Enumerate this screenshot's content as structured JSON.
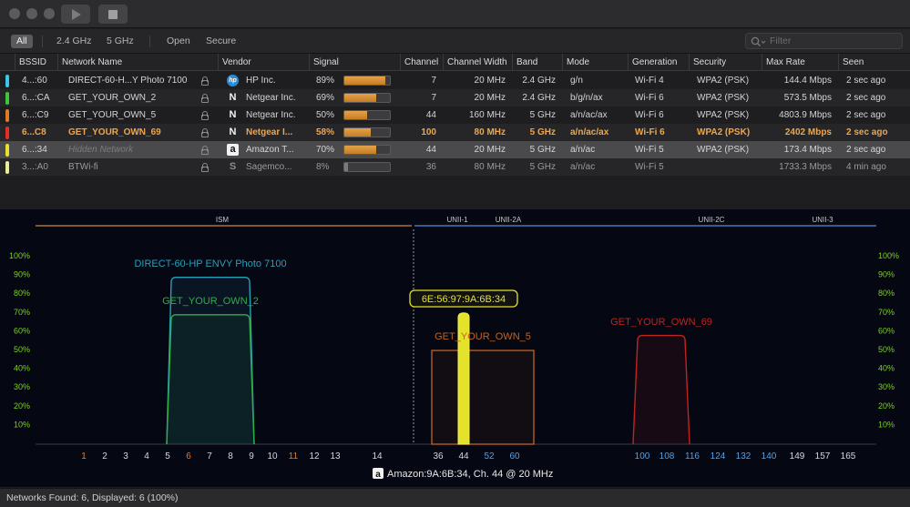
{
  "toolbar": {
    "play_icon": "play-icon",
    "stop_icon": "stop-icon"
  },
  "filters": {
    "all": "All",
    "band24": "2.4 GHz",
    "band5": "5 GHz",
    "open": "Open",
    "secure": "Secure",
    "search_placeholder": "Filter"
  },
  "table": {
    "columns": [
      "BSSID",
      "Network Name",
      "Vendor",
      "Signal",
      "Channel",
      "Channel Width",
      "Band",
      "Mode",
      "Generation",
      "Security",
      "Max Rate",
      "Seen"
    ],
    "rows": [
      {
        "color": "#38c8e6",
        "bssid": "4...:60",
        "name": "DIRECT-60-H...Y Photo 7100",
        "vendor_icon": "hp-logo-icon",
        "vendor_glyph": "hp",
        "vendor": "HP Inc.",
        "signal": "89%",
        "signal_level": 0.89,
        "channel": "7",
        "width": "20 MHz",
        "band": "2.4 GHz",
        "mode": "g/n",
        "generation": "Wi-Fi 4",
        "security": "WPA2 (PSK)",
        "rate": "144.4 Mbps",
        "seen": "2 sec ago"
      },
      {
        "color": "#3ec63a",
        "bssid": "6...:CA",
        "name": "GET_YOUR_OWN_2",
        "vendor_icon": "netgear-logo-icon",
        "vendor_glyph": "N",
        "vendor": "Netgear Inc.",
        "signal": "69%",
        "signal_level": 0.69,
        "channel": "7",
        "width": "20 MHz",
        "band": "2.4 GHz",
        "mode": "b/g/n/ax",
        "generation": "Wi-Fi 6",
        "security": "WPA2 (PSK)",
        "rate": "573.5 Mbps",
        "seen": "2 sec ago"
      },
      {
        "color": "#e4782a",
        "bssid": "6...:C9",
        "name": "GET_YOUR_OWN_5",
        "vendor_icon": "netgear-logo-icon",
        "vendor_glyph": "N",
        "vendor": "Netgear Inc.",
        "signal": "50%",
        "signal_level": 0.5,
        "channel": "44",
        "width": "160 MHz",
        "band": "5 GHz",
        "mode": "a/n/ac/ax",
        "generation": "Wi-Fi 6",
        "security": "WPA2 (PSK)",
        "rate": "4803.9 Mbps",
        "seen": "2 sec ago"
      },
      {
        "color": "#e0302a",
        "bssid": "6...C8",
        "name": "GET_YOUR_OWN_69",
        "vendor_icon": "netgear-logo-icon",
        "vendor_glyph": "N",
        "vendor": "Netgear I...",
        "signal": "58%",
        "signal_level": 0.58,
        "channel": "100",
        "width": "80 MHz",
        "band": "5 GHz",
        "mode": "a/n/ac/ax",
        "generation": "Wi-Fi 6",
        "security": "WPA2 (PSK)",
        "rate": "2402 Mbps",
        "seen": "2 sec ago"
      },
      {
        "color": "#e8e030",
        "bssid": "6...:34",
        "name": "Hidden Network",
        "vendor_icon": "amazon-logo-icon",
        "vendor_glyph": "a",
        "vendor": "Amazon T...",
        "signal": "70%",
        "signal_level": 0.7,
        "channel": "44",
        "width": "20 MHz",
        "band": "5 GHz",
        "mode": "a/n/ac",
        "generation": "Wi-Fi 5",
        "security": "WPA2 (PSK)",
        "rate": "173.4 Mbps",
        "seen": "2 sec ago"
      },
      {
        "color": "#ecec9a",
        "bssid": "3...:A0",
        "name": "BTWi-fi",
        "vendor_icon": "sagemcom-logo-icon",
        "vendor_glyph": "S",
        "vendor": "Sagemco...",
        "signal": "8%",
        "signal_level": 0.08,
        "channel": "36",
        "width": "80 MHz",
        "band": "5 GHz",
        "mode": "a/n/ac",
        "generation": "Wi-Fi 5",
        "security": "",
        "rate": "1733.3 Mbps",
        "seen": "4 min ago"
      }
    ]
  },
  "graph": {
    "band_labels": [
      "ISM",
      "UNII-1",
      "UNII-2A",
      "UNII-2C",
      "UNII-3"
    ],
    "y_ticks": [
      "100%",
      "90%",
      "80%",
      "70%",
      "60%",
      "50%",
      "40%",
      "30%",
      "20%",
      "10%"
    ],
    "x_ticks": [
      "1",
      "2",
      "3",
      "4",
      "5",
      "6",
      "7",
      "8",
      "9",
      "10",
      "11",
      "12",
      "13",
      "14",
      "36",
      "44",
      "52",
      "60",
      "100",
      "108",
      "116",
      "124",
      "132",
      "140",
      "149",
      "157",
      "165"
    ],
    "network_labels": [
      "DIRECT-60-HP ENVY Photo 7100",
      "GET_YOUR_OWN_2",
      "GET_YOUR_OWN_5",
      "GET_YOUR_OWN_69"
    ],
    "tooltip": "6E:56:97:9A:6B:34",
    "selected_caption": "Amazon:9A:6B:34, Ch. 44 @ 20 MHz",
    "selected_icon": "amazon-logo-icon",
    "colors": {
      "ism": "#d2863a",
      "unii": "#4e8ed8",
      "axis_green": "#7ad21e",
      "x_orange": "#e4782a",
      "x_blue": "#4ea2ee"
    }
  },
  "status": {
    "text": "Networks Found: 6, Displayed: 6 (100%)"
  }
}
